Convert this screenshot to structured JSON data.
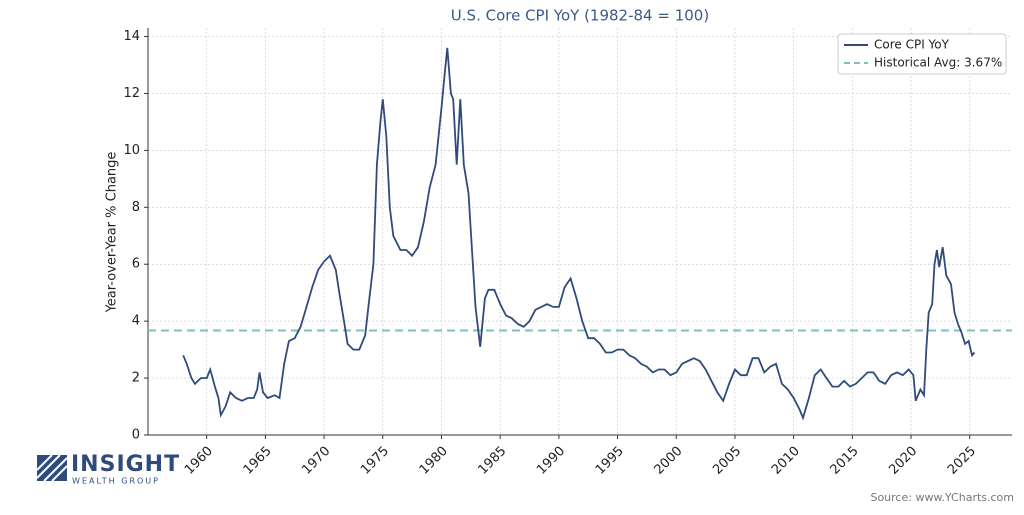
{
  "chart_data": {
    "type": "line",
    "title": "U.S. Core CPI YoY (1982-84 = 100)",
    "ylabel": "Year-over-Year % Change",
    "x": [
      1958.0,
      1958.3,
      1958.7,
      1959.0,
      1959.5,
      1960.0,
      1960.3,
      1960.7,
      1961.0,
      1961.2,
      1961.6,
      1962.0,
      1962.5,
      1963.0,
      1963.5,
      1964.0,
      1964.3,
      1964.5,
      1964.8,
      1965.2,
      1965.8,
      1966.2,
      1966.6,
      1967.0,
      1967.5,
      1968.0,
      1968.5,
      1969.0,
      1969.5,
      1970.0,
      1970.5,
      1971.0,
      1971.3,
      1971.7,
      1972.0,
      1972.5,
      1973.0,
      1973.5,
      1973.8,
      1974.2,
      1974.5,
      1974.8,
      1975.0,
      1975.3,
      1975.6,
      1975.9,
      1976.5,
      1977.0,
      1977.5,
      1978.0,
      1978.5,
      1979.0,
      1979.5,
      1980.0,
      1980.3,
      1980.5,
      1980.8,
      1981.0,
      1981.3,
      1981.6,
      1981.9,
      1982.3,
      1982.6,
      1982.9,
      1983.3,
      1983.7,
      1984.0,
      1984.5,
      1985.0,
      1985.5,
      1986.0,
      1986.5,
      1987.0,
      1987.5,
      1988.0,
      1988.5,
      1989.0,
      1989.5,
      1990.0,
      1990.5,
      1991.0,
      1991.5,
      1992.0,
      1992.5,
      1993.0,
      1993.5,
      1994.0,
      1994.5,
      1995.0,
      1995.5,
      1996.0,
      1996.5,
      1997.0,
      1997.5,
      1998.0,
      1998.5,
      1999.0,
      1999.5,
      2000.0,
      2000.5,
      2001.0,
      2001.5,
      2002.0,
      2002.5,
      2003.0,
      2003.5,
      2004.0,
      2004.5,
      2005.0,
      2005.5,
      2006.0,
      2006.5,
      2007.0,
      2007.5,
      2008.0,
      2008.5,
      2009.0,
      2009.5,
      2010.0,
      2010.5,
      2010.8,
      2011.3,
      2011.8,
      2012.3,
      2012.8,
      2013.3,
      2013.8,
      2014.3,
      2014.8,
      2015.3,
      2015.8,
      2016.3,
      2016.8,
      2017.3,
      2017.8,
      2018.3,
      2018.8,
      2019.3,
      2019.8,
      2020.2,
      2020.4,
      2020.8,
      2021.1,
      2021.3,
      2021.5,
      2021.8,
      2022.0,
      2022.2,
      2022.4,
      2022.7,
      2023.0,
      2023.4,
      2023.7,
      2024.0,
      2024.3,
      2024.6,
      2024.9,
      2025.2,
      2025.4
    ],
    "series": [
      {
        "name": "Core CPI YoY",
        "color": "#2f4b7c",
        "values": [
          2.8,
          2.5,
          2.0,
          1.8,
          2.0,
          2.0,
          2.3,
          1.7,
          1.3,
          0.7,
          1.0,
          1.5,
          1.3,
          1.2,
          1.3,
          1.3,
          1.6,
          2.2,
          1.5,
          1.3,
          1.4,
          1.3,
          2.5,
          3.3,
          3.4,
          3.8,
          4.5,
          5.2,
          5.8,
          6.1,
          6.3,
          5.8,
          5.0,
          4.0,
          3.2,
          3.0,
          3.0,
          3.5,
          4.6,
          6.0,
          9.5,
          11.0,
          11.8,
          10.5,
          8.0,
          7.0,
          6.5,
          6.5,
          6.3,
          6.6,
          7.5,
          8.7,
          9.5,
          11.5,
          12.8,
          13.6,
          12.0,
          11.8,
          9.5,
          11.8,
          9.5,
          8.5,
          6.5,
          4.5,
          3.1,
          4.8,
          5.1,
          5.1,
          4.6,
          4.2,
          4.1,
          3.9,
          3.8,
          4.0,
          4.4,
          4.5,
          4.6,
          4.5,
          4.5,
          5.2,
          5.5,
          4.8,
          4.0,
          3.4,
          3.4,
          3.2,
          2.9,
          2.9,
          3.0,
          3.0,
          2.8,
          2.7,
          2.5,
          2.4,
          2.2,
          2.3,
          2.3,
          2.1,
          2.2,
          2.5,
          2.6,
          2.7,
          2.6,
          2.3,
          1.9,
          1.5,
          1.2,
          1.8,
          2.3,
          2.1,
          2.1,
          2.7,
          2.7,
          2.2,
          2.4,
          2.5,
          1.8,
          1.6,
          1.3,
          0.9,
          0.6,
          1.3,
          2.1,
          2.3,
          2.0,
          1.7,
          1.7,
          1.9,
          1.7,
          1.8,
          2.0,
          2.2,
          2.2,
          1.9,
          1.8,
          2.1,
          2.2,
          2.1,
          2.3,
          2.1,
          1.2,
          1.6,
          1.4,
          3.0,
          4.3,
          4.6,
          6.0,
          6.5,
          5.9,
          6.6,
          5.6,
          5.3,
          4.3,
          3.9,
          3.6,
          3.2,
          3.3,
          2.8,
          2.9
        ]
      }
    ],
    "hline": {
      "name": "Historical Avg: 3.67%",
      "value": 3.67,
      "color": "#7fbfbf"
    },
    "xlim": [
      1955,
      2028.6
    ],
    "ylim": [
      0,
      14.3
    ],
    "xticks": [
      1960,
      1965,
      1970,
      1975,
      1980,
      1985,
      1990,
      1995,
      2000,
      2005,
      2010,
      2015,
      2020,
      2025
    ],
    "yticks": [
      0,
      2,
      4,
      6,
      8,
      10,
      12,
      14
    ],
    "grid": true,
    "legend": "upper right"
  },
  "logo": {
    "name": "INSIGHT",
    "tagline": "WEALTH GROUP"
  },
  "source": "Source: www.YCharts.com"
}
